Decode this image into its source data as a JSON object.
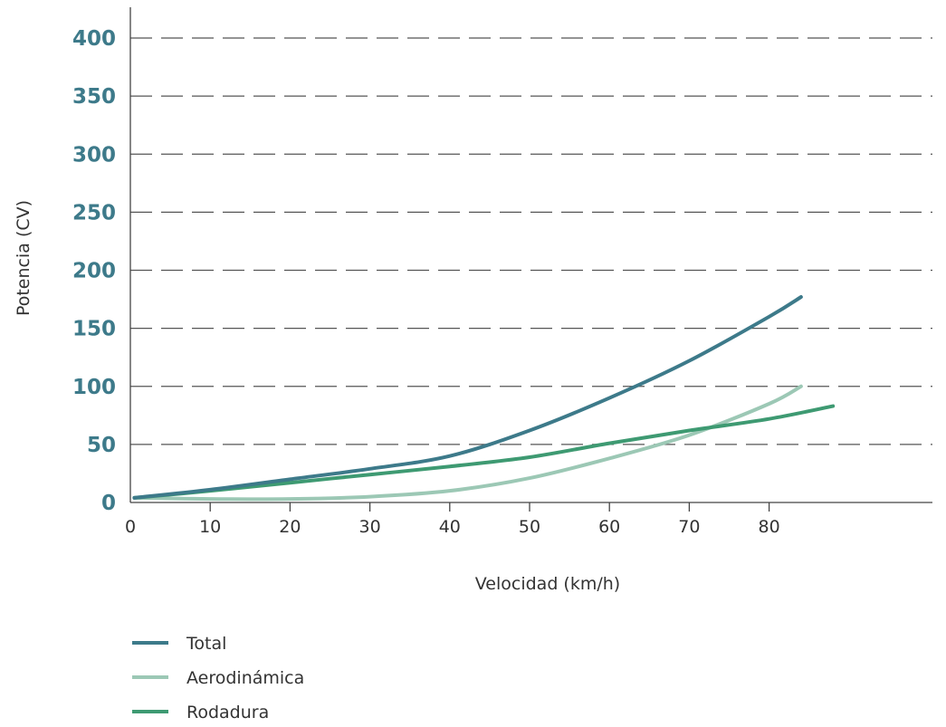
{
  "chart_data": {
    "type": "line",
    "xlabel": "Velocidad (km/h)",
    "ylabel": "Potencia (CV)",
    "xlim": [
      0,
      100
    ],
    "ylim": [
      0,
      400
    ],
    "x_ticks": [
      "0",
      "10",
      "20",
      "30",
      "40",
      "50",
      "60",
      "70",
      "80"
    ],
    "y_ticks": [
      "0",
      "50",
      "100",
      "150",
      "200",
      "250",
      "300",
      "350",
      "400"
    ],
    "grid": "horizontal-dashed",
    "legend_position": "bottom",
    "series": [
      {
        "name": "Total",
        "color": "#3d7a8a",
        "points": [
          [
            0.5,
            4
          ],
          [
            10,
            11
          ],
          [
            20,
            20
          ],
          [
            30,
            29
          ],
          [
            40,
            40
          ],
          [
            50,
            62
          ],
          [
            60,
            90
          ],
          [
            70,
            122
          ],
          [
            80,
            160
          ],
          [
            84,
            177
          ]
        ]
      },
      {
        "name": "Aerodinámica",
        "color": "#9cc8b5",
        "points": [
          [
            0.5,
            4
          ],
          [
            10,
            3
          ],
          [
            20,
            3
          ],
          [
            30,
            5
          ],
          [
            40,
            10
          ],
          [
            50,
            21
          ],
          [
            60,
            38
          ],
          [
            70,
            58
          ],
          [
            80,
            85
          ],
          [
            84,
            100
          ]
        ]
      },
      {
        "name": "Rodadura",
        "color": "#3e9a72",
        "points": [
          [
            0.5,
            4
          ],
          [
            10,
            10
          ],
          [
            20,
            17
          ],
          [
            30,
            24
          ],
          [
            40,
            31
          ],
          [
            50,
            39
          ],
          [
            60,
            51
          ],
          [
            70,
            62
          ],
          [
            80,
            72
          ],
          [
            88,
            83
          ]
        ]
      }
    ]
  },
  "colors": {
    "y_tick": "#3d7a8a",
    "text": "#333333",
    "axis": "#444444",
    "grid": "#555555"
  }
}
